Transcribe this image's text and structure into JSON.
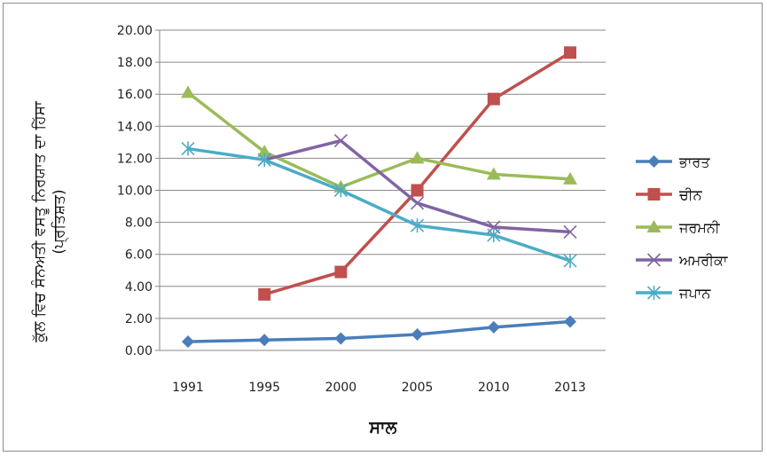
{
  "chart_data": {
    "type": "line",
    "categories": [
      "1991",
      "1995",
      "2000",
      "2005",
      "2010",
      "2013"
    ],
    "xlabel": "ਸਾਲ",
    "ylabel_line1": "ਕੁੱਲ ਵਿਚ ਸੰਨਅਤੀ ਵਸਤੂ ਨਿਰਯਾਤ ਦਾ ਹਿੱਸਾ",
    "ylabel_line2": "(ਪ੍ਰਤਿਸ਼ਤ)",
    "ylim": [
      0,
      20
    ],
    "ytick_step": 2,
    "ytick_labels": [
      "0.00",
      "2.00",
      "4.00",
      "6.00",
      "8.00",
      "10.00",
      "12.00",
      "14.00",
      "16.00",
      "18.00",
      "20.00"
    ],
    "grid": true,
    "legend_position": "right",
    "series": [
      {
        "name": "ਭਾਰਤ",
        "color": "#4a7ebb",
        "marker": "diamond",
        "values": [
          0.55,
          0.65,
          0.75,
          1.0,
          1.45,
          1.8
        ]
      },
      {
        "name": "ਚੀਨ",
        "color": "#c0504d",
        "marker": "square",
        "values": [
          null,
          3.5,
          4.9,
          10.0,
          15.7,
          18.6
        ]
      },
      {
        "name": "ਜਰਮਨੀ",
        "color": "#9bbb59",
        "marker": "triangle",
        "values": [
          16.1,
          12.4,
          10.2,
          12.0,
          11.0,
          10.7
        ]
      },
      {
        "name": "ਅਮਰੀਕਾ",
        "color": "#8064a2",
        "marker": "x",
        "values": [
          null,
          11.9,
          13.1,
          9.2,
          7.7,
          7.4
        ]
      },
      {
        "name": "ਜਪਾਨ",
        "color": "#4bacc6",
        "marker": "star",
        "values": [
          12.6,
          11.9,
          10.0,
          7.8,
          7.2,
          5.6
        ]
      }
    ]
  }
}
